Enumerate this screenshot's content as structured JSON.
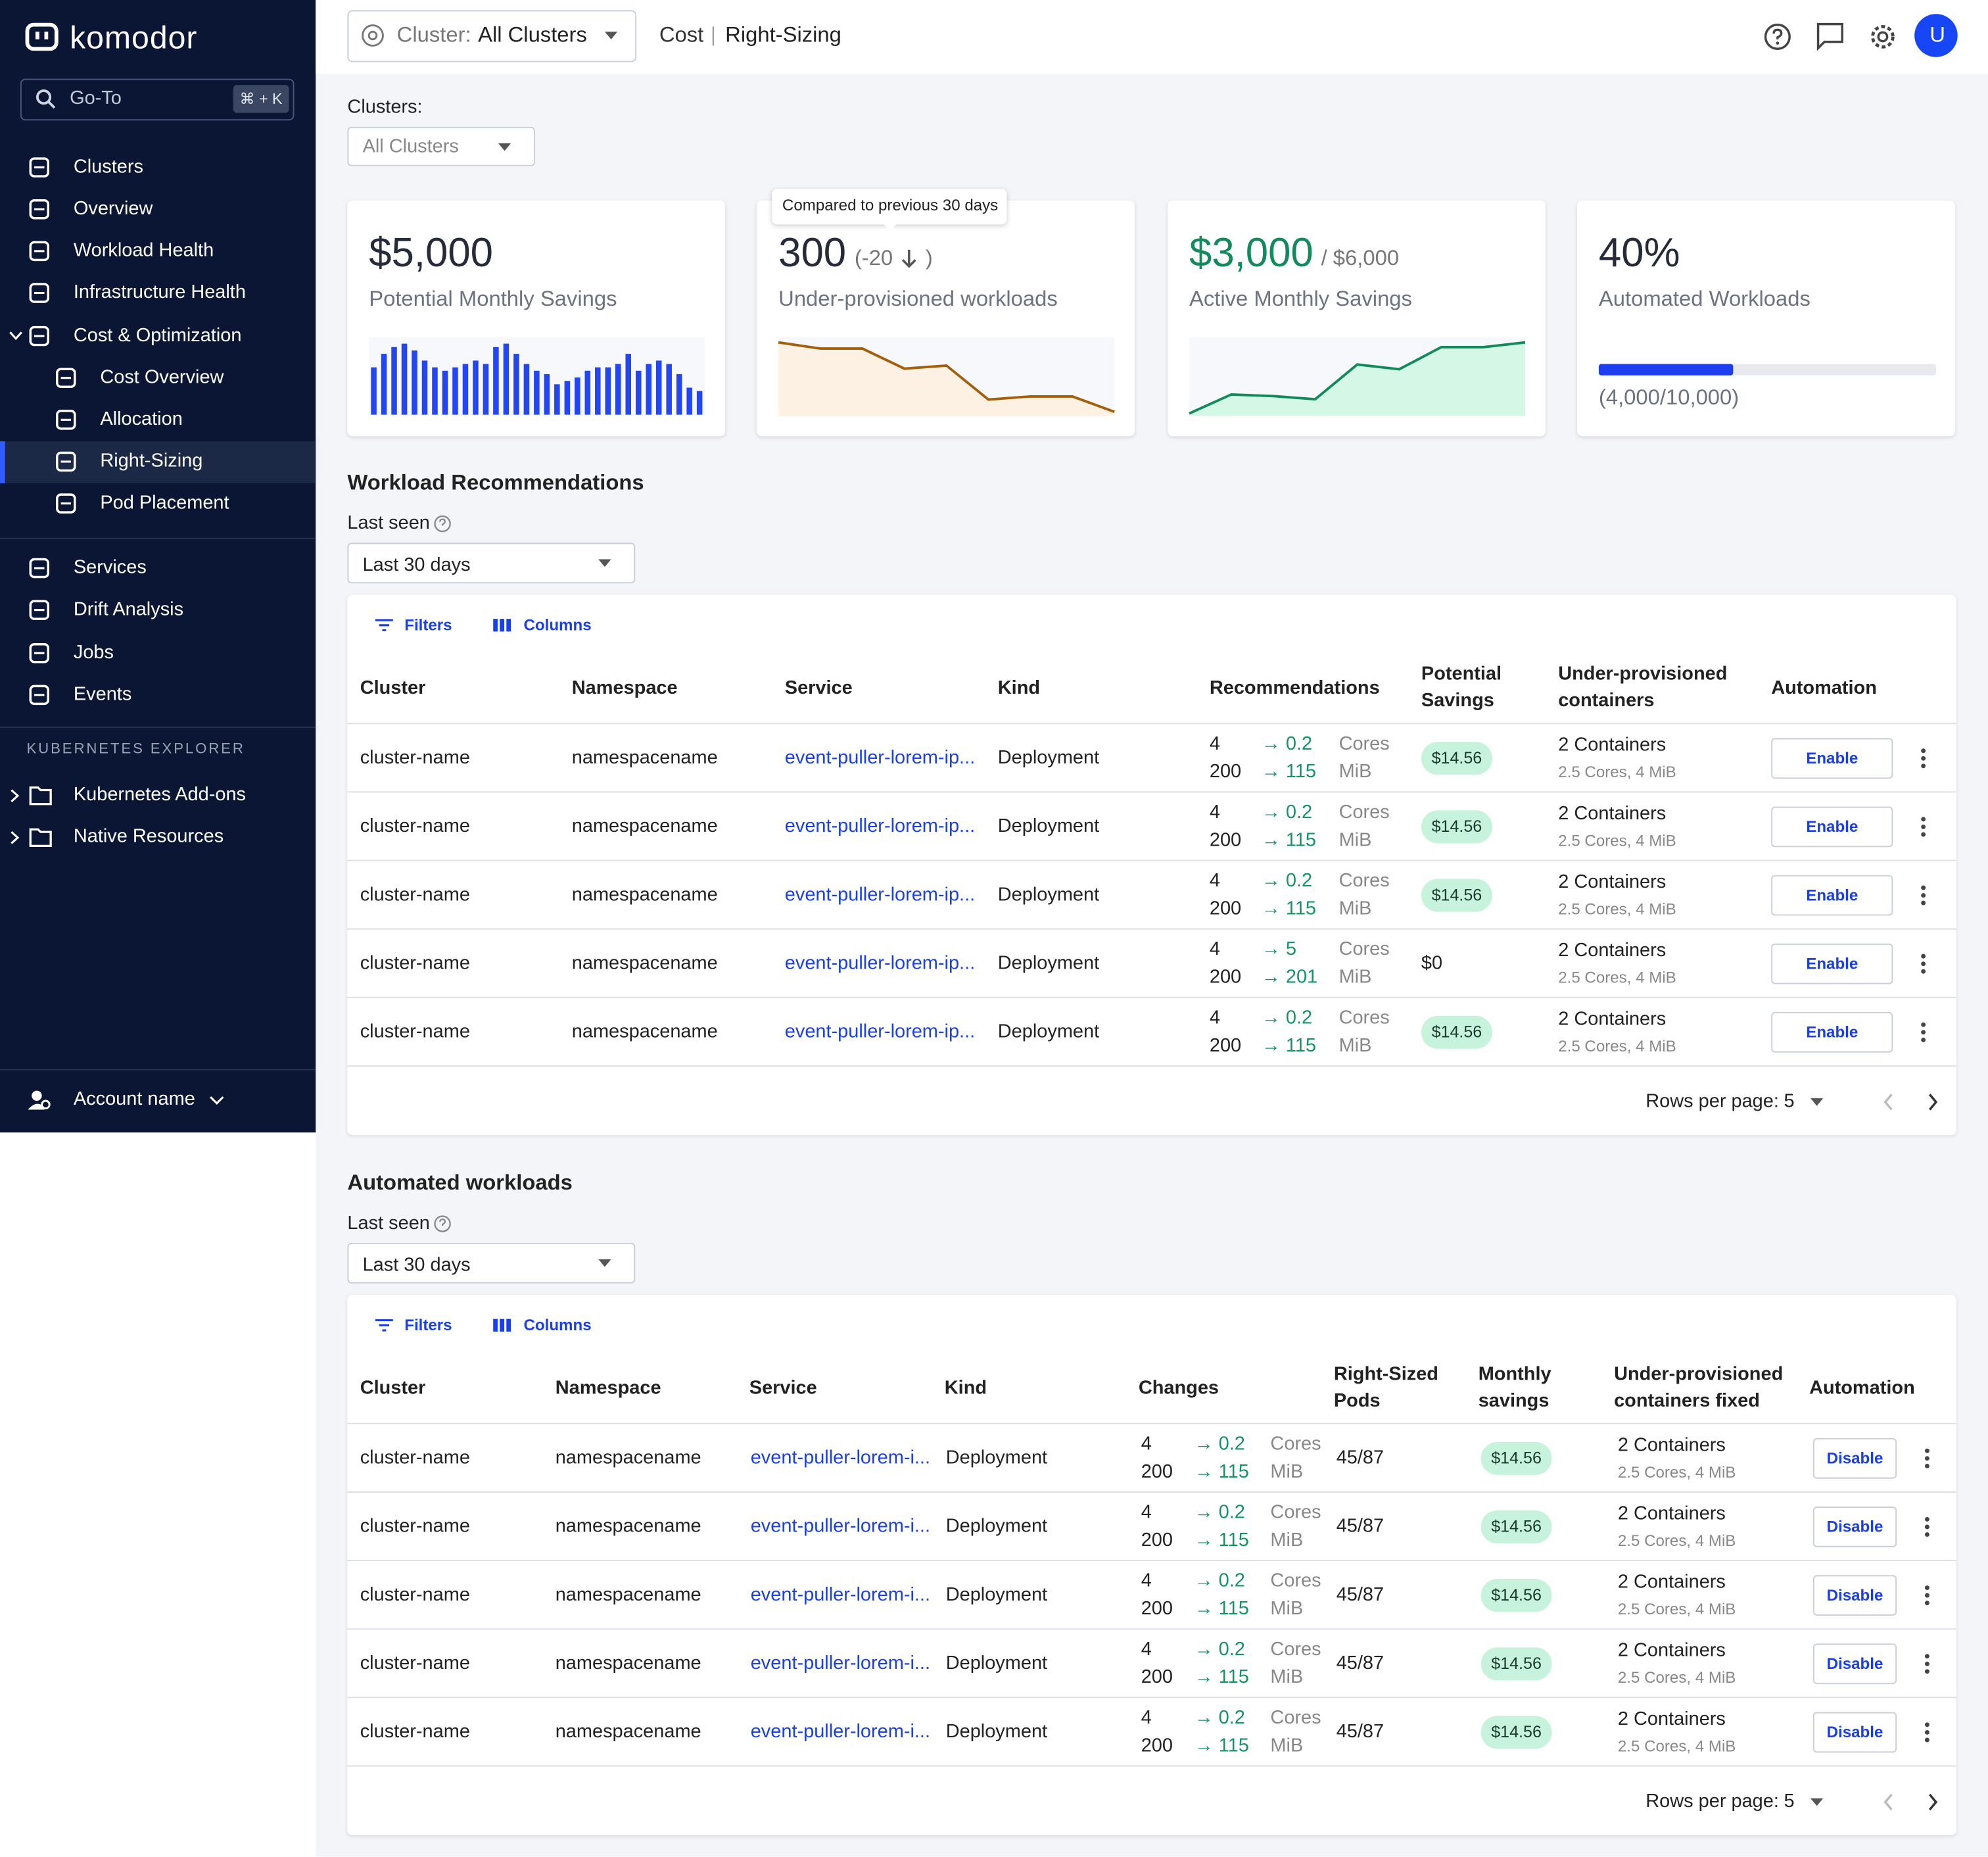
{
  "sidebar": {
    "logo": "komodor",
    "search": "Go-To",
    "shortcut": "⌘ + K",
    "nav": [
      {
        "label": "Clusters"
      },
      {
        "label": "Overview"
      },
      {
        "label": "Workload Health"
      },
      {
        "label": "Infrastructure Health"
      },
      {
        "label": "Cost & Optimization",
        "expanded": true
      },
      {
        "label": "Cost Overview",
        "child": true
      },
      {
        "label": "Allocation",
        "child": true
      },
      {
        "label": "Right-Sizing",
        "child": true,
        "active": true
      },
      {
        "label": "Pod Placement",
        "child": true
      }
    ],
    "nav2": [
      {
        "label": "Services"
      },
      {
        "label": "Drift Analysis"
      },
      {
        "label": "Jobs"
      },
      {
        "label": "Events"
      }
    ],
    "section": "KUBERNETES EXPLORER",
    "explorer": [
      "Kubernetes Add-ons",
      "Native Resources"
    ],
    "account": "Account name"
  },
  "topbar": {
    "cluster_label": "Cluster:",
    "cluster_value": "All Clusters",
    "breadcrumb": [
      "Cost",
      "Right-Sizing"
    ],
    "avatar": "U"
  },
  "filter": {
    "label": "Clusters:",
    "value": "All Clusters"
  },
  "tooltip": "Compared to previous 30 days",
  "cards": [
    {
      "value": "$5,000",
      "label": "Potential Monthly Savings",
      "chart": {
        "type": "bar",
        "color": "#2446f0",
        "values": [
          28,
          36,
          40,
          42,
          38,
          32,
          28,
          26,
          28,
          30,
          32,
          30,
          40,
          42,
          36,
          30,
          26,
          24,
          18,
          20,
          22,
          26,
          28,
          28,
          30,
          36,
          26,
          30,
          32,
          30,
          24,
          16,
          14
        ]
      }
    },
    {
      "value": "300",
      "delta": "(-20",
      "delta_close": ")",
      "label": "Under-provisioned workloads",
      "chart": {
        "type": "line",
        "color": "#a35f0b",
        "fill": "#fdf1e3",
        "values": [
          46,
          42,
          42,
          29,
          31,
          9,
          11,
          11,
          1
        ]
      }
    },
    {
      "value": "$3,000",
      "secondary": "/ $6,000",
      "label": "Active Monthly Savings",
      "chart": {
        "type": "line",
        "color": "#138a5a",
        "fill": "#d4f7e6",
        "values": [
          0,
          12,
          11,
          9,
          31,
          28,
          42,
          42,
          45
        ]
      }
    },
    {
      "value": "40%",
      "label": "Automated Workloads",
      "progress": {
        "value": 4000,
        "max": 10000,
        "label": "(4,000/10,000)"
      }
    }
  ],
  "recommendations": {
    "title": "Workload Recommendations",
    "last_seen_label": "Last seen",
    "last_seen_value": "Last 30 days",
    "filters": "Filters",
    "columns_button": "Columns",
    "columns": [
      "Cluster",
      "Namespace",
      "Service",
      "Kind",
      "Recommendations",
      "Potential Savings",
      "Under-provisioned containers",
      "Automation"
    ],
    "rows": [
      {
        "cluster": "cluster-name",
        "namespace": "namespacename",
        "service": "event-puller-lorem-ip...",
        "kind": "Deployment",
        "cpu": "4",
        "cpu_to": "→ 0.2",
        "cpu_unit": "Cores",
        "mem": "200",
        "mem_to": "→ 115",
        "mem_unit": "MiB",
        "savings": "$14.56",
        "savings_badge": true,
        "containers": "2 Containers",
        "containers_detail": "2.5 Cores, 4 MiB",
        "action": "Enable"
      },
      {
        "cluster": "cluster-name",
        "namespace": "namespacename",
        "service": "event-puller-lorem-ip...",
        "kind": "Deployment",
        "cpu": "4",
        "cpu_to": "→ 0.2",
        "cpu_unit": "Cores",
        "mem": "200",
        "mem_to": "→ 115",
        "mem_unit": "MiB",
        "savings": "$14.56",
        "savings_badge": true,
        "containers": "2 Containers",
        "containers_detail": "2.5 Cores, 4 MiB",
        "action": "Enable"
      },
      {
        "cluster": "cluster-name",
        "namespace": "namespacename",
        "service": "event-puller-lorem-ip...",
        "kind": "Deployment",
        "cpu": "4",
        "cpu_to": "→ 0.2",
        "cpu_unit": "Cores",
        "mem": "200",
        "mem_to": "→ 115",
        "mem_unit": "MiB",
        "savings": "$14.56",
        "savings_badge": true,
        "containers": "2 Containers",
        "containers_detail": "2.5 Cores, 4 MiB",
        "action": "Enable"
      },
      {
        "cluster": "cluster-name",
        "namespace": "namespacename",
        "service": "event-puller-lorem-ip...",
        "kind": "Deployment",
        "cpu": "4",
        "cpu_to": "→ 5",
        "cpu_unit": "Cores",
        "mem": "200",
        "mem_to": "→ 201",
        "mem_unit": "MiB",
        "savings": "$0",
        "savings_badge": false,
        "containers": "2 Containers",
        "containers_detail": "2.5 Cores, 4 MiB",
        "action": "Enable"
      },
      {
        "cluster": "cluster-name",
        "namespace": "namespacename",
        "service": "event-puller-lorem-ip...",
        "kind": "Deployment",
        "cpu": "4",
        "cpu_to": "→ 0.2",
        "cpu_unit": "Cores",
        "mem": "200",
        "mem_to": "→ 115",
        "mem_unit": "MiB",
        "savings": "$14.56",
        "savings_badge": true,
        "containers": "2 Containers",
        "containers_detail": "2.5 Cores, 4 MiB",
        "action": "Enable"
      }
    ],
    "rows_per_page_label": "Rows per page:",
    "rows_per_page": "5"
  },
  "automated": {
    "title": "Automated workloads",
    "last_seen_label": "Last seen",
    "last_seen_value": "Last 30 days",
    "filters": "Filters",
    "columns_button": "Columns",
    "columns": [
      "Cluster",
      "Namespace",
      "Service",
      "Kind",
      "Changes",
      "Right-Sized Pods",
      "Monthly savings",
      "Under-provisioned containers fixed",
      "Automation"
    ],
    "rows": [
      {
        "cluster": "cluster-name",
        "namespace": "namespacename",
        "service": "event-puller-lorem-i...",
        "kind": "Deployment",
        "cpu": "4",
        "cpu_to": "→ 0.2",
        "cpu_unit": "Cores",
        "mem": "200",
        "mem_to": "→ 115",
        "mem_unit": "MiB",
        "right_sized": "45/87",
        "savings": "$14.56",
        "savings_badge": true,
        "containers": "2 Containers",
        "containers_detail": "2.5 Cores, 4 MiB",
        "action": "Disable"
      },
      {
        "cluster": "cluster-name",
        "namespace": "namespacename",
        "service": "event-puller-lorem-i...",
        "kind": "Deployment",
        "cpu": "4",
        "cpu_to": "→ 0.2",
        "cpu_unit": "Cores",
        "mem": "200",
        "mem_to": "→ 115",
        "mem_unit": "MiB",
        "right_sized": "45/87",
        "savings": "$14.56",
        "savings_badge": true,
        "containers": "2 Containers",
        "containers_detail": "2.5 Cores, 4 MiB",
        "action": "Disable"
      },
      {
        "cluster": "cluster-name",
        "namespace": "namespacename",
        "service": "event-puller-lorem-i...",
        "kind": "Deployment",
        "cpu": "4",
        "cpu_to": "→ 0.2",
        "cpu_unit": "Cores",
        "mem": "200",
        "mem_to": "→ 115",
        "mem_unit": "MiB",
        "right_sized": "45/87",
        "savings": "$14.56",
        "savings_badge": true,
        "containers": "2 Containers",
        "containers_detail": "2.5 Cores, 4 MiB",
        "action": "Disable"
      },
      {
        "cluster": "cluster-name",
        "namespace": "namespacename",
        "service": "event-puller-lorem-i...",
        "kind": "Deployment",
        "cpu": "4",
        "cpu_to": "→ 0.2",
        "cpu_unit": "Cores",
        "mem": "200",
        "mem_to": "→ 115",
        "mem_unit": "MiB",
        "right_sized": "45/87",
        "savings": "$14.56",
        "savings_badge": true,
        "containers": "2 Containers",
        "containers_detail": "2.5 Cores, 4 MiB",
        "action": "Disable"
      },
      {
        "cluster": "cluster-name",
        "namespace": "namespacename",
        "service": "event-puller-lorem-i...",
        "kind": "Deployment",
        "cpu": "4",
        "cpu_to": "→ 0.2",
        "cpu_unit": "Cores",
        "mem": "200",
        "mem_to": "→ 115",
        "mem_unit": "MiB",
        "right_sized": "45/87",
        "savings": "$14.56",
        "savings_badge": true,
        "containers": "2 Containers",
        "containers_detail": "2.5 Cores, 4 MiB",
        "action": "Disable"
      }
    ],
    "rows_per_page_label": "Rows per page:",
    "rows_per_page": "5"
  }
}
